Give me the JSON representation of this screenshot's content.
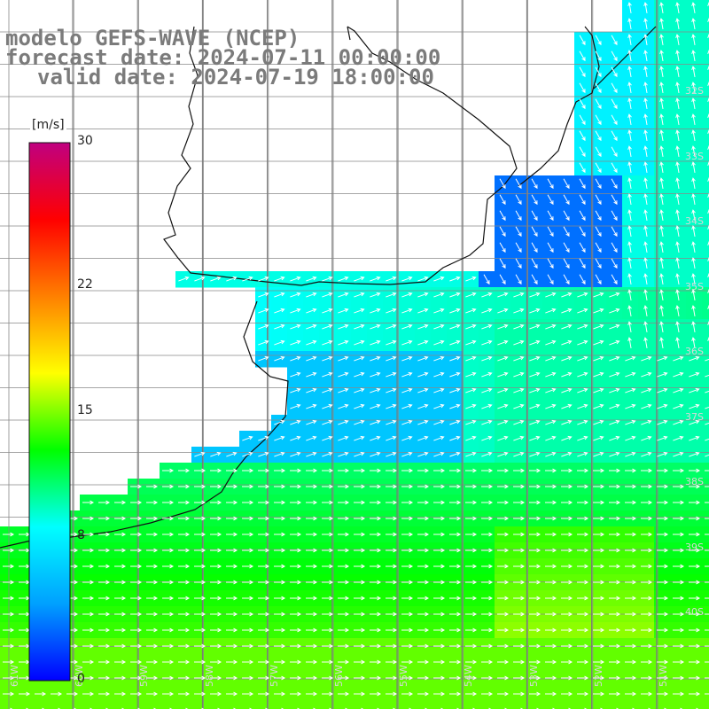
{
  "title": {
    "line1": "modelo GEFS-WAVE (NCEP)",
    "line2": "forecast date: 2024-07-11 00:00:00",
    "line3": "valid date: 2024-07-19 18:00:00"
  },
  "colorbar": {
    "unit": "[m/s]",
    "min": 0,
    "max": 30,
    "ticks": [
      "30",
      "22",
      "15",
      "8",
      "0"
    ],
    "tick_values": [
      30,
      22,
      15,
      8,
      0
    ],
    "colors": [
      "#0000ff",
      "#00a0ff",
      "#00ffff",
      "#00ff00",
      "#ffff00",
      "#ff8000",
      "#ff0000",
      "#c00080"
    ]
  },
  "axes": {
    "lat_labels": [
      "32S",
      "33S",
      "34S",
      "35S",
      "36S",
      "37S",
      "38S",
      "39S",
      "40S"
    ],
    "lon_labels": [
      "61W",
      "60W",
      "59W",
      "58W",
      "57W",
      "56W",
      "55W",
      "54W",
      "53W",
      "52W",
      "51W"
    ]
  },
  "map": {
    "field": "wind speed",
    "lon_range": [
      -61.5,
      -50.5
    ],
    "lat_range": [
      -30.5,
      -41.0
    ]
  }
}
